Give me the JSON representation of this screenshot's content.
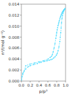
{
  "chart_data": {
    "type": "line",
    "title": "",
    "xlabel": "p/p°",
    "ylabel": "nᵃ/(mol g⁻¹)",
    "xlim": [
      0,
      1.0
    ],
    "ylim": [
      0,
      0.014
    ],
    "xticks": [
      {
        "value": 0,
        "label": "0.0"
      },
      0.2,
      0.4,
      0.6,
      0.8,
      {
        "value": 1.0,
        "label": "1.0"
      }
    ],
    "yticks": [
      {
        "value": 0,
        "label": "0.000"
      },
      0.002,
      0.004,
      0.006,
      0.008,
      {
        "value": 0.01,
        "label": "0.010"
      },
      0.012,
      0.014
    ],
    "series": [
      {
        "color": "#55DDFF",
        "marker": "circle",
        "line_style": "dashed",
        "x": [
          0.0,
          0.01,
          0.03,
          0.06,
          0.1,
          0.15,
          0.2,
          0.28,
          0.36,
          0.44,
          0.52,
          0.58,
          0.63,
          0.67,
          0.7,
          0.73,
          0.76,
          0.79,
          0.81,
          0.83,
          0.85,
          0.87,
          0.88,
          0.89,
          0.9,
          0.91,
          0.92,
          0.93,
          0.94,
          0.95,
          0.96,
          0.97,
          0.98,
          0.99
        ],
        "values": [
          0.0002,
          0.0008,
          0.0014,
          0.0018,
          0.0022,
          0.0026,
          0.0028,
          0.003,
          0.0032,
          0.0034,
          0.0036,
          0.0037,
          0.0038,
          0.0039,
          0.004,
          0.0042,
          0.0044,
          0.0047,
          0.005,
          0.0055,
          0.0062,
          0.0072,
          0.008,
          0.0088,
          0.0097,
          0.0106,
          0.0114,
          0.0119,
          0.0123,
          0.0126,
          0.0128,
          0.013,
          0.0131,
          0.0132
        ]
      },
      {
        "color": "#55DDFF",
        "marker": "circle",
        "line_style": "dashed",
        "x": [
          0.99,
          0.98,
          0.97,
          0.96,
          0.95,
          0.94,
          0.93,
          0.92,
          0.91,
          0.9,
          0.89,
          0.88,
          0.87,
          0.86,
          0.85,
          0.84,
          0.83,
          0.82,
          0.81,
          0.8,
          0.79,
          0.78,
          0.76,
          0.74,
          0.72,
          0.7,
          0.68,
          0.65,
          0.6,
          0.5,
          0.4,
          0.3,
          0.2,
          0.1,
          0.0
        ],
        "values": [
          0.0132,
          0.0131,
          0.013,
          0.0129,
          0.0128,
          0.0127,
          0.0126,
          0.0124,
          0.0122,
          0.012,
          0.0118,
          0.0116,
          0.0113,
          0.011,
          0.0107,
          0.0104,
          0.0101,
          0.0097,
          0.0093,
          0.0088,
          0.0083,
          0.0078,
          0.0068,
          0.006,
          0.0053,
          0.0048,
          0.0045,
          0.0043,
          0.004,
          0.0037,
          0.0035,
          0.0033,
          0.0031,
          0.0028,
          0.0002
        ]
      }
    ]
  }
}
